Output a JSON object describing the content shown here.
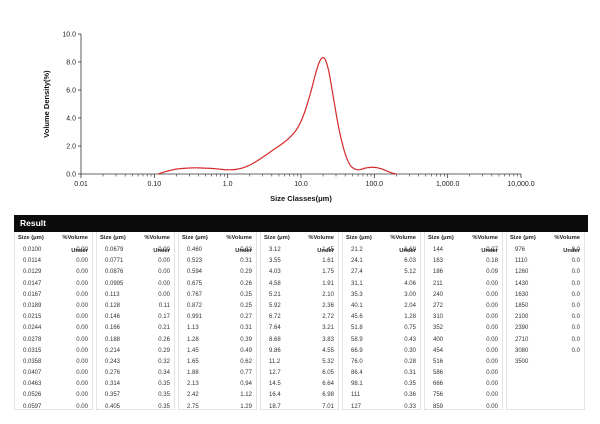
{
  "chart_data": {
    "type": "line",
    "title": "",
    "xlabel": "Size Classes(μm)",
    "ylabel": "Volume Density(%)",
    "xscale": "log",
    "xlim": [
      0.01,
      10000
    ],
    "ylim": [
      0,
      10
    ],
    "xticks": [
      0.01,
      0.1,
      1,
      10,
      100,
      1000,
      10000
    ],
    "xtick_labels": [
      "0.01",
      "0.10",
      "1.0",
      "10.0",
      "100.0",
      "1,000.0",
      "10,000.0"
    ],
    "yticks": [
      0,
      2,
      4,
      6,
      8,
      10
    ],
    "ytick_labels": [
      "0.0",
      "2.0",
      "4.0",
      "6.0",
      "8.0",
      "10.0"
    ],
    "line_color": "#d42a2a",
    "grid": false,
    "series": [
      {
        "x": [
          0.113,
          0.15,
          0.2,
          0.3,
          0.4,
          0.6,
          0.8,
          1.0,
          1.3,
          1.7,
          2.2,
          3.0,
          4.0,
          5.5,
          7.0,
          9.0,
          11.0,
          13.5,
          15.5,
          17.5,
          19.5,
          21.5,
          24.0,
          28.0,
          33.0,
          40.0,
          48.0,
          60.0,
          75.0,
          95.0,
          120.0,
          150.0,
          180.0,
          200.0
        ],
        "y": [
          0.0,
          0.2,
          0.35,
          0.43,
          0.44,
          0.4,
          0.34,
          0.3,
          0.33,
          0.48,
          0.75,
          1.2,
          1.65,
          2.15,
          2.6,
          3.3,
          4.3,
          5.8,
          7.0,
          7.9,
          8.3,
          8.15,
          7.3,
          5.3,
          3.2,
          1.45,
          0.55,
          0.3,
          0.42,
          0.48,
          0.4,
          0.2,
          0.05,
          0.0
        ]
      }
    ]
  },
  "result": {
    "title": "Result",
    "size_header": "Size (μm)",
    "vol_header": "%Volume Under",
    "columns": [
      {
        "sizes": [
          "0.0100",
          "0.0114",
          "0.0129",
          "0.0147",
          "0.0167",
          "0.0189",
          "0.0215",
          "0.0244",
          "0.0278",
          "0.0315",
          "0.0358",
          "0.0407",
          "0.0463",
          "0.0526",
          "0.0597"
        ],
        "values": [
          "0.00",
          "0.00",
          "0.00",
          "0.00",
          "0.00",
          "0.00",
          "0.00",
          "0.00",
          "0.00",
          "0.00",
          "0.00",
          "0.00",
          "0.00",
          "0.00",
          "0.00"
        ]
      },
      {
        "sizes": [
          "0.0679",
          "0.0771",
          "0.0876",
          "0.0995",
          "0.113",
          "0.128",
          "0.146",
          "0.166",
          "0.188",
          "0.214",
          "0.243",
          "0.276",
          "0.314",
          "0.357",
          "0.405"
        ],
        "values": [
          "0.00",
          "0.00",
          "0.00",
          "0.00",
          "0.00",
          "0.11",
          "0.17",
          "0.21",
          "0.26",
          "0.29",
          "0.32",
          "0.34",
          "0.35",
          "0.35",
          "0.35"
        ]
      },
      {
        "sizes": [
          "0.460",
          "0.523",
          "0.594",
          "0.675",
          "0.767",
          "0.872",
          "0.991",
          "1.13",
          "1.28",
          "1.45",
          "1.65",
          "1.88",
          "2.13",
          "2.42",
          "2.75"
        ],
        "values": [
          "0.33",
          "0.31",
          "0.29",
          "0.26",
          "0.25",
          "0.25",
          "0.27",
          "0.31",
          "0.39",
          "0.49",
          "0.62",
          "0.77",
          "0.94",
          "1.12",
          "1.29"
        ]
      },
      {
        "sizes": [
          "3.12",
          "3.55",
          "4.03",
          "4.58",
          "5.21",
          "5.92",
          "6.72",
          "7.64",
          "8.68",
          "9.86",
          "11.2",
          "12.7",
          "14.5",
          "16.4",
          "18.7"
        ],
        "values": [
          "1.45",
          "1.61",
          "1.75",
          "1.91",
          "2.10",
          "2.36",
          "2.72",
          "3.21",
          "3.83",
          "4.55",
          "5.32",
          "6.05",
          "6.64",
          "6.98",
          "7.01"
        ]
      },
      {
        "sizes": [
          "21.2",
          "24.1",
          "27.4",
          "31.1",
          "35.3",
          "40.1",
          "45.6",
          "51.8",
          "58.9",
          "66.9",
          "76.0",
          "86.4",
          "98.1",
          "111",
          "127"
        ],
        "values": [
          "6.69",
          "6.03",
          "5.12",
          "4.06",
          "3.00",
          "2.04",
          "1.28",
          "0.75",
          "0.43",
          "0.30",
          "0.28",
          "0.31",
          "0.35",
          "0.36",
          "0.33"
        ]
      },
      {
        "sizes": [
          "144",
          "163",
          "186",
          "211",
          "240",
          "272",
          "310",
          "352",
          "400",
          "454",
          "516",
          "586",
          "666",
          "756",
          "859"
        ],
        "values": [
          "0.27",
          "0.18",
          "0.09",
          "0.00",
          "0.00",
          "0.00",
          "0.00",
          "0.00",
          "0.00",
          "0.00",
          "0.00",
          "0.00",
          "0.00",
          "0.00",
          "0.00"
        ]
      },
      {
        "sizes": [
          "976",
          "1110",
          "1260",
          "1430",
          "1630",
          "1850",
          "2100",
          "2390",
          "2710",
          "3080",
          "3500"
        ],
        "values": [
          "0.0",
          "0.0",
          "0.0",
          "0.0",
          "0.0",
          "0.0",
          "0.0",
          "0.0",
          "0.0",
          "0.0",
          ""
        ]
      }
    ]
  }
}
